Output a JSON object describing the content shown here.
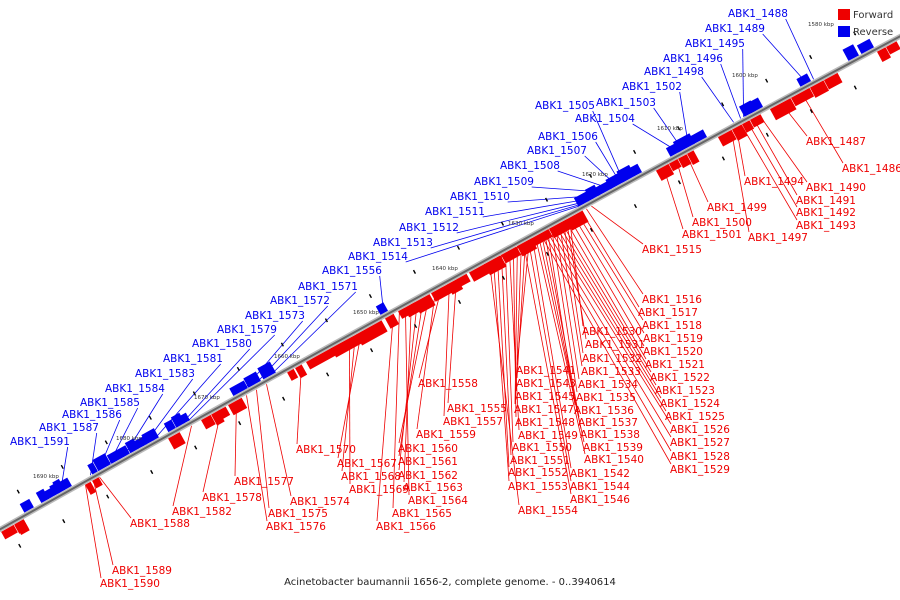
{
  "caption": "Acinetobacter baumannii 1656-2, complete genome. - 0..3940614",
  "legend": {
    "items": [
      {
        "label": "Forward",
        "color": "#ee0000"
      },
      {
        "label": "Reverse",
        "color": "#0000ee"
      }
    ]
  },
  "colors": {
    "forward": "#ee0000",
    "reverse": "#0000ee",
    "backbone": "#888888"
  },
  "ticks": [
    "1580 kbp",
    "1600 kbp",
    "1610 kbp",
    "1620 kbp",
    "1630 kbp",
    "1640 kbp",
    "1650 kbp",
    "1660 kbp",
    "1670 kbp",
    "1680 kbp",
    "1690 kbp"
  ],
  "genes": {
    "forward": [
      "ABK1_1486",
      "ABK1_1487",
      "ABK1_1490",
      "ABK1_1491",
      "ABK1_1492",
      "ABK1_1493",
      "ABK1_1494",
      "ABK1_1497",
      "ABK1_1499",
      "ABK1_1500",
      "ABK1_1501",
      "ABK1_1515",
      "ABK1_1516",
      "ABK1_1517",
      "ABK1_1518",
      "ABK1_1519",
      "ABK1_1520",
      "ABK1_1521",
      "ABK1_1522",
      "ABK1_1523",
      "ABK1_1524",
      "ABK1_1525",
      "ABK1_1526",
      "ABK1_1527",
      "ABK1_1528",
      "ABK1_1529",
      "ABK1_1530",
      "ABK1_1531",
      "ABK1_1532",
      "ABK1_1533",
      "ABK1_1534",
      "ABK1_1535",
      "ABK1_1536",
      "ABK1_1537",
      "ABK1_1538",
      "ABK1_1539",
      "ABK1_1540",
      "ABK1_1541",
      "ABK1_1542",
      "ABK1_1543",
      "ABK1_1544",
      "ABK1_1545",
      "ABK1_1546",
      "ABK1_1547",
      "ABK1_1548",
      "ABK1_1549",
      "ABK1_1550",
      "ABK1_1551",
      "ABK1_1552",
      "ABK1_1553",
      "ABK1_1554",
      "ABK1_1555",
      "ABK1_1557",
      "ABK1_1558",
      "ABK1_1559",
      "ABK1_1560",
      "ABK1_1561",
      "ABK1_1562",
      "ABK1_1563",
      "ABK1_1564",
      "ABK1_1565",
      "ABK1_1566",
      "ABK1_1567",
      "ABK1_1568",
      "ABK1_1569",
      "ABK1_1570",
      "ABK1_1574",
      "ABK1_1575",
      "ABK1_1576",
      "ABK1_1577",
      "ABK1_1578",
      "ABK1_1582",
      "ABK1_1588",
      "ABK1_1589",
      "ABK1_1590"
    ],
    "reverse": [
      "ABK1_1488",
      "ABK1_1489",
      "ABK1_1495",
      "ABK1_1496",
      "ABK1_1498",
      "ABK1_1502",
      "ABK1_1503",
      "ABK1_1504",
      "ABK1_1505",
      "ABK1_1506",
      "ABK1_1507",
      "ABK1_1508",
      "ABK1_1509",
      "ABK1_1510",
      "ABK1_1511",
      "ABK1_1512",
      "ABK1_1513",
      "ABK1_1514",
      "ABK1_1556",
      "ABK1_1571",
      "ABK1_1572",
      "ABK1_1573",
      "ABK1_1579",
      "ABK1_1580",
      "ABK1_1581",
      "ABK1_1583",
      "ABK1_1584",
      "ABK1_1585",
      "ABK1_1586",
      "ABK1_1587",
      "ABK1_1591"
    ]
  }
}
